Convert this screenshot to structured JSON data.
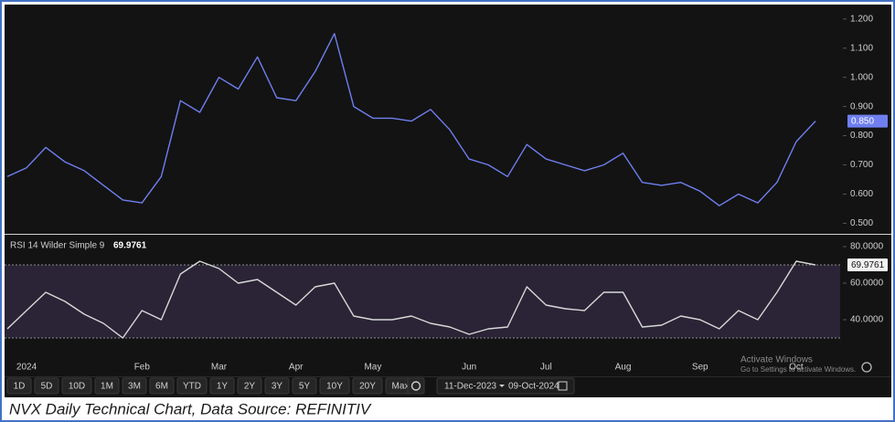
{
  "chart_data": [
    {
      "type": "line",
      "categories": [
        null,
        "2024",
        null,
        null,
        null,
        null,
        null,
        "Feb",
        null,
        null,
        null,
        "Mar",
        null,
        null,
        null,
        "Apr",
        null,
        null,
        null,
        "May",
        null,
        null,
        null,
        null,
        "Jun",
        null,
        null,
        null,
        "Jul",
        null,
        null,
        null,
        "Aug",
        null,
        null,
        null,
        "Sep",
        null,
        null,
        null,
        null,
        "Oct",
        null
      ],
      "series": [
        {
          "name": "NVX",
          "color": "#6f7ff0",
          "values": [
            0.66,
            0.69,
            0.76,
            0.71,
            0.68,
            0.63,
            0.58,
            0.57,
            0.66,
            0.92,
            0.88,
            1.0,
            0.96,
            1.07,
            0.93,
            0.92,
            1.02,
            1.15,
            0.9,
            0.86,
            0.86,
            0.85,
            0.89,
            0.82,
            0.72,
            0.7,
            0.66,
            0.77,
            0.72,
            0.7,
            0.68,
            0.7,
            0.74,
            0.64,
            0.63,
            0.64,
            0.61,
            0.56,
            0.6,
            0.57,
            0.64,
            0.78,
            0.85
          ],
          "value_labels": [
            null,
            null,
            null,
            null,
            null,
            null,
            null,
            null,
            null,
            null,
            null,
            null,
            null,
            null,
            null,
            null,
            null,
            null,
            null,
            null,
            null,
            null,
            null,
            null,
            null,
            null,
            null,
            null,
            null,
            null,
            null,
            null,
            null,
            null,
            null,
            null,
            null,
            null,
            null,
            null,
            null,
            null,
            "0.850"
          ]
        }
      ],
      "ylim": [
        0.47,
        1.24
      ],
      "yticks": [
        {
          "value": 0.5,
          "label": "0.500"
        },
        {
          "value": 0.6,
          "label": "0.600"
        },
        {
          "value": 0.7,
          "label": "0.700"
        },
        {
          "value": 0.8,
          "label": "0.800"
        },
        {
          "value": 0.9,
          "label": "0.900"
        },
        {
          "value": 1.0,
          "label": "1.000"
        },
        {
          "value": 1.1,
          "label": "1.100"
        },
        {
          "value": 1.2,
          "label": "1.200"
        }
      ],
      "grid": false
    },
    {
      "type": "line",
      "title": "RSI 14 Wilder Simple 9",
      "series": [
        {
          "name": "RSI",
          "color": "#d8d8d8",
          "values": [
            35,
            45,
            55,
            50,
            43,
            38,
            30,
            45,
            40,
            65,
            72,
            68,
            60,
            62,
            55,
            48,
            58,
            60,
            42,
            40,
            40,
            42,
            38,
            36,
            32,
            35,
            36,
            58,
            48,
            46,
            45,
            55,
            55,
            36,
            37,
            42,
            40,
            35,
            45,
            40,
            55,
            72,
            69.9761
          ]
        }
      ],
      "ylim": [
        25,
        85
      ],
      "yticks": [
        {
          "value": 40,
          "label": "40.0000"
        },
        {
          "value": 60,
          "label": "60.0000"
        },
        {
          "value": 80,
          "label": "80.0000"
        }
      ],
      "reference_lines": [
        70,
        30
      ],
      "band_color": "#2a2436",
      "grid": false
    }
  ],
  "toolbar": {
    "ranges": [
      "1D",
      "5D",
      "10D",
      "1M",
      "3M",
      "6M",
      "YTD",
      "1Y",
      "2Y",
      "3Y",
      "5Y",
      "10Y",
      "20Y",
      "Max"
    ],
    "date_from": "11-Dec-2023",
    "date_to": "09-Oct-2024"
  },
  "watermark": {
    "title": "Activate Windows",
    "text": "Go to Settings to activate Windows."
  },
  "caption": "NVX Daily Technical Chart, Data Source: REFINITIV"
}
